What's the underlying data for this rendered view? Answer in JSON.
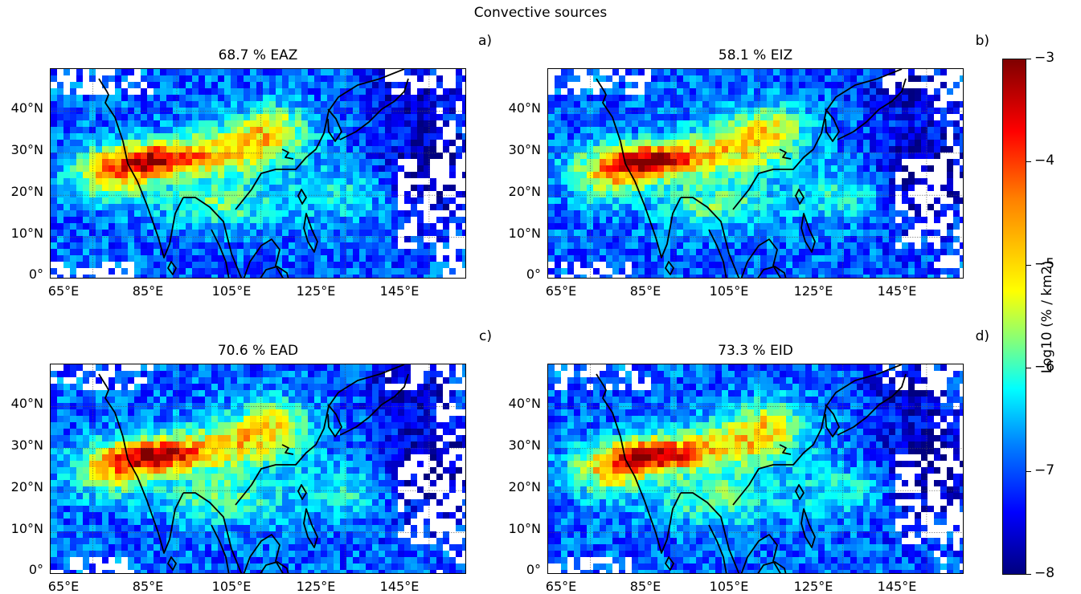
{
  "figure": {
    "title": "Convective sources",
    "x_ticks": [
      "65°E",
      "85°E",
      "105°E",
      "125°E",
      "145°E"
    ],
    "y_ticks": [
      "40°N",
      "30°N",
      "20°N",
      "10°N",
      "0°"
    ],
    "panels": [
      {
        "letter": "a)",
        "title": "68.7 % EAZ"
      },
      {
        "letter": "b)",
        "title": "58.1 % EIZ"
      },
      {
        "letter": "c)",
        "title": "70.6 % EAD"
      },
      {
        "letter": "d)",
        "title": "73.3 % EID"
      }
    ],
    "colorbar": {
      "label": "Log10 (% / km2)",
      "ticks": [
        "−3",
        "−4",
        "−5",
        "−6",
        "−7",
        "−8"
      ],
      "colormap": "jet"
    }
  }
}
